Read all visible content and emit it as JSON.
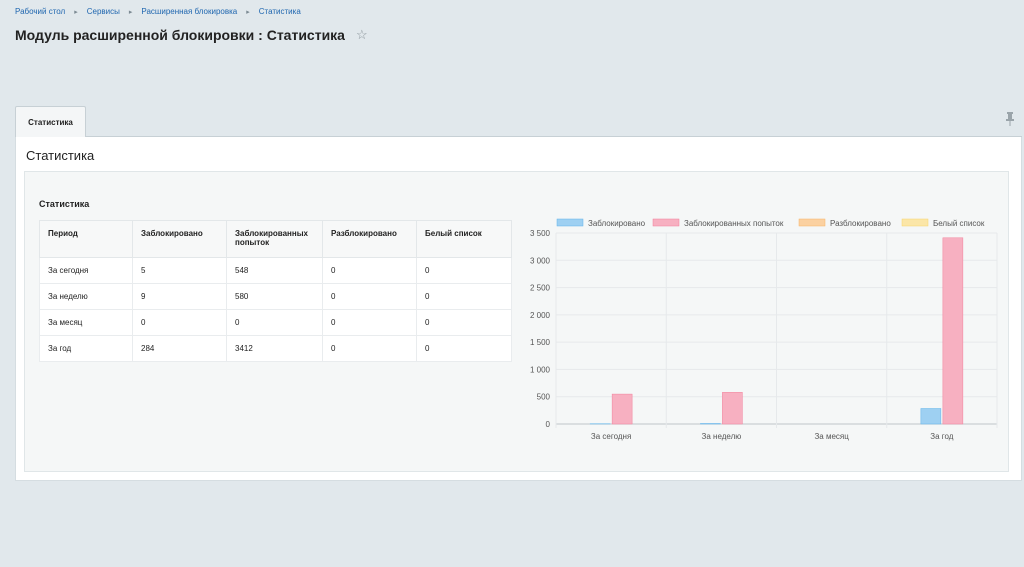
{
  "breadcrumb": [
    "Рабочий стол",
    "Сервисы",
    "Расширенная блокировка",
    "Статистика"
  ],
  "page_title": "Модуль расширенной блокировки : Статистика",
  "tab_label": "Статистика",
  "panel_title": "Статистика",
  "section_title": "Статистика",
  "table": {
    "headers": [
      "Период",
      "Заблокировано",
      "Заблокированных попыток",
      "Разблокировано",
      "Белый список"
    ],
    "rows": [
      [
        "За сегодня",
        "5",
        "548",
        "0",
        "0"
      ],
      [
        "За неделю",
        "9",
        "580",
        "0",
        "0"
      ],
      [
        "За месяц",
        "0",
        "0",
        "0",
        "0"
      ],
      [
        "За год",
        "284",
        "3412",
        "0",
        "0"
      ]
    ]
  },
  "chart_data": {
    "type": "bar",
    "categories": [
      "За сегодня",
      "За неделю",
      "За месяц",
      "За год"
    ],
    "series": [
      {
        "name": "Заблокировано",
        "values": [
          5,
          9,
          0,
          284
        ],
        "color": "#9ed0f2",
        "stroke": "#61b3ea"
      },
      {
        "name": "Заблокированных попыток",
        "values": [
          548,
          580,
          0,
          3412
        ],
        "color": "#f7b0c1",
        "stroke": "#f27f9a"
      },
      {
        "name": "Разблокировано",
        "values": [
          0,
          0,
          0,
          0
        ],
        "color": "#fbd1a1",
        "stroke": "#f8b266"
      },
      {
        "name": "Белый список",
        "values": [
          0,
          0,
          0,
          0
        ],
        "color": "#fbe6a8",
        "stroke": "#f8d46a"
      }
    ],
    "ylim": [
      0,
      3500
    ],
    "yticks": [
      0,
      500,
      1000,
      1500,
      2000,
      2500,
      3000,
      3500
    ],
    "ytick_labels": [
      "0",
      "500",
      "1 000",
      "1 500",
      "2 000",
      "2 500",
      "3 000",
      "3 500"
    ],
    "grid": true,
    "legend": "top"
  },
  "colors": {
    "page_bg": "#e1e8ec",
    "link": "#2067b0"
  },
  "icons": [
    "star-icon",
    "pin-icon",
    "chevron-right-icon"
  ]
}
